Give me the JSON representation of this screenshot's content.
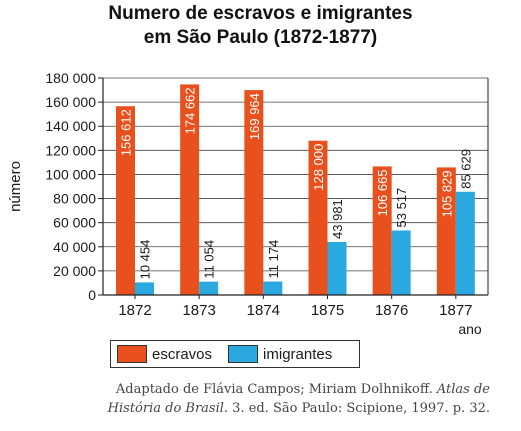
{
  "title_lines": [
    "Numero de escravos e imigrantes",
    "em São Paulo (1872-1877)"
  ],
  "source": {
    "prefix": "Adaptado de Flávia Campos; Miriam Dolhnikoff. ",
    "italic1": "Atlas de",
    "italic2": "História do Brasil",
    "suffix": ". 3. ed. São Paulo: Scipione, 1997. p. 32."
  },
  "colors": {
    "escravos": "#e8501d",
    "imigrantes": "#2aa9e0",
    "axis": "#222222",
    "grid": "#444444"
  },
  "chart_data": {
    "type": "bar",
    "title": "Numero de escravos e imigrantes em São Paulo (1872-1877)",
    "xlabel": "ano",
    "ylabel": "número",
    "categories": [
      "1872",
      "1873",
      "1874",
      "1875",
      "1876",
      "1877"
    ],
    "series": [
      {
        "name": "escravos",
        "values": [
          156612,
          174662,
          169964,
          128000,
          106665,
          105829
        ],
        "labels": [
          "156 612",
          "174 662",
          "169 964",
          "128 000",
          "106 665",
          "105 829"
        ]
      },
      {
        "name": "imigrantes",
        "values": [
          10454,
          11054,
          11174,
          43981,
          53517,
          85629
        ],
        "labels": [
          "10 454",
          "11 054",
          "11 174",
          "43 981",
          "53 517",
          "85 629"
        ]
      }
    ],
    "ylim": [
      0,
      180000
    ],
    "yticks": [
      0,
      20000,
      40000,
      60000,
      80000,
      100000,
      120000,
      140000,
      160000,
      180000
    ],
    "ytick_labels": [
      "0",
      "20 000",
      "40 000",
      "60 000",
      "80 000",
      "100 000",
      "120 000",
      "140 000",
      "160 000",
      "180 000"
    ],
    "grid": true,
    "legend": "bottom"
  }
}
